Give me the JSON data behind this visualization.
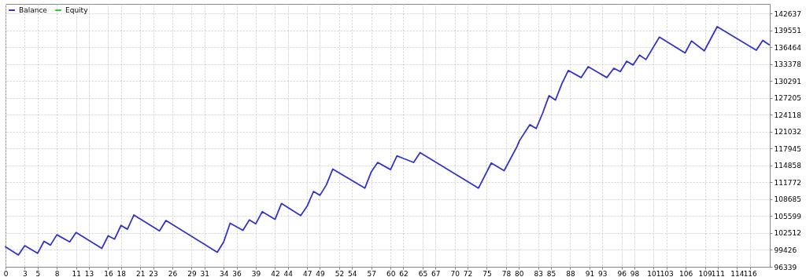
{
  "chart_data": {
    "type": "line",
    "x": [
      0,
      2,
      3,
      5,
      6,
      7,
      8,
      10,
      11,
      15,
      16,
      17,
      18,
      19,
      20,
      24,
      25,
      33,
      34,
      35,
      37,
      38,
      39,
      40,
      42,
      43,
      46,
      47,
      48,
      49,
      50,
      51,
      56,
      57,
      58,
      60,
      61,
      63.6,
      64.6,
      73.7,
      75.7,
      77.7,
      79.7,
      80.1,
      81.7,
      82.7,
      83.7,
      84.7,
      85.7,
      86.7,
      87.7,
      89.7,
      90.8,
      93.7,
      94.8,
      95.8,
      96.8,
      97.8,
      98.8,
      99.8,
      101.9,
      105.9,
      106.9,
      107.9,
      108.9,
      110.9,
      117,
      118,
      119
    ],
    "series": [
      {
        "name": "Balance",
        "color": "#3333cc",
        "values": [
          100000,
          98500,
          100200,
          98800,
          101000,
          100300,
          102200,
          100900,
          102600,
          99700,
          102000,
          101400,
          103900,
          103200,
          105800,
          102900,
          104800,
          99000,
          100900,
          104300,
          103000,
          104900,
          104200,
          106400,
          105000,
          107900,
          105700,
          107400,
          110100,
          109400,
          111300,
          114200,
          110700,
          113700,
          115400,
          114100,
          116600,
          115400,
          117200,
          110700,
          115300,
          113900,
          118300,
          119400,
          122300,
          121600,
          124400,
          127600,
          126800,
          129800,
          132200,
          130900,
          132900,
          130900,
          132600,
          132000,
          133900,
          133200,
          135000,
          134200,
          138300,
          135400,
          137600,
          136700,
          135800,
          140200,
          135900,
          137700,
          136900
        ]
      },
      {
        "name": "Equity",
        "color": "#33cc33",
        "values": [
          null,
          null,
          null,
          null,
          null,
          null,
          null,
          null,
          null,
          null,
          null,
          null,
          null,
          null,
          null,
          null,
          null,
          null,
          null,
          null,
          null,
          null,
          null,
          null,
          null,
          null,
          null,
          null,
          null,
          null,
          null,
          null,
          null,
          null,
          null,
          null,
          null,
          null,
          null,
          null,
          null,
          null,
          null,
          null,
          null,
          null,
          null,
          null,
          null,
          null,
          null,
          null,
          null,
          null,
          null,
          null,
          null,
          null,
          null,
          null,
          null,
          null,
          null,
          null,
          null,
          null,
          null,
          null,
          null
        ]
      }
    ],
    "xlim": [
      0,
      119.1
    ],
    "xticks": [
      0,
      3,
      5,
      8,
      11,
      13,
      16,
      18,
      21,
      23,
      26,
      29,
      31,
      34,
      36,
      39,
      42,
      44,
      47,
      49,
      52,
      54,
      57,
      60,
      62,
      65,
      67,
      70,
      72,
      75,
      78,
      80,
      83,
      85,
      88,
      91,
      93,
      96,
      98,
      101,
      103,
      106,
      109,
      111,
      114,
      116
    ],
    "ylim": [
      96339,
      144360
    ],
    "yticks": [
      96339,
      99426,
      102512,
      105599,
      108685,
      111772,
      114858,
      117945,
      121032,
      124118,
      127205,
      130291,
      133378,
      136464,
      139551,
      142637
    ],
    "grid": true,
    "legend": "top left",
    "marker": "none",
    "line_style": "solid"
  }
}
